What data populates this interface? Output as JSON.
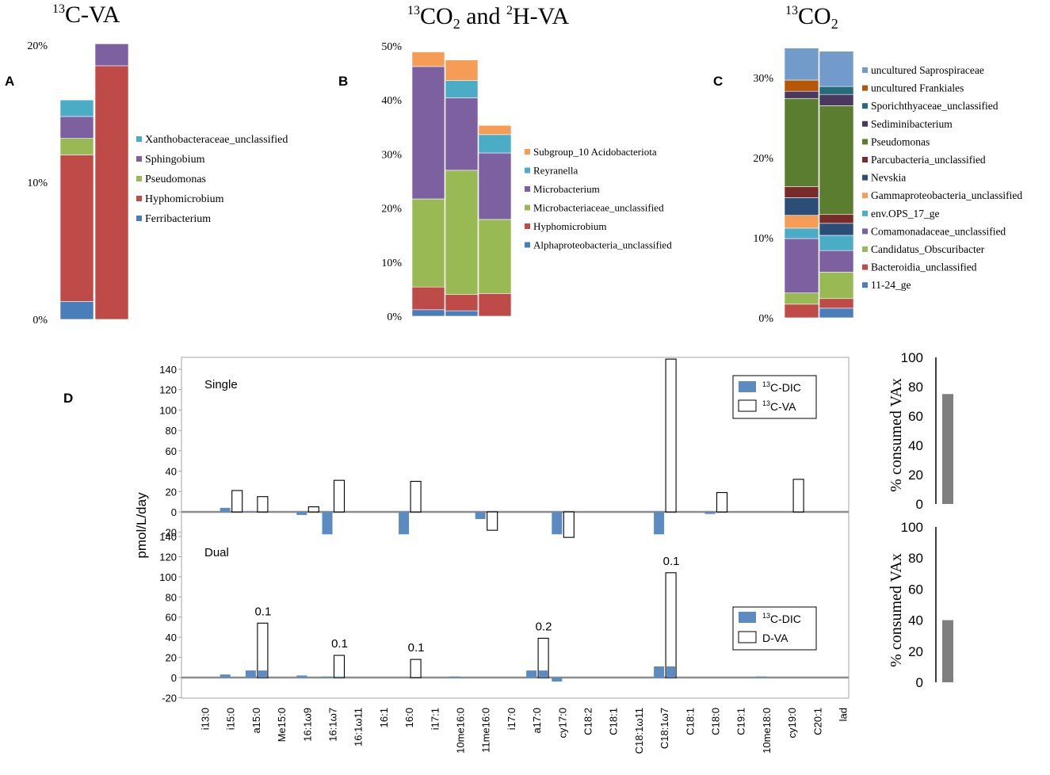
{
  "panels_top": {
    "A": {
      "letter": "A",
      "title_sup": "13",
      "title_main": "C-VA",
      "yticks": [
        "0%",
        "10%",
        "20%"
      ],
      "ymax": 20,
      "legend": [
        "Xanthobacteraceae_unclassified",
        "Sphingobium",
        "Pseudomonas",
        "Hyphomicrobium",
        "Ferribacterium"
      ]
    },
    "B": {
      "letter": "B",
      "yticks": [
        "0%",
        "10%",
        "20%",
        "30%",
        "40%",
        "50%"
      ],
      "ymax": 50,
      "legend": [
        "Subgroup_10 Acidobacteriota",
        "Reyranella",
        "Microbacterium",
        "Microbacteriaceae_unclassified",
        "Hyphomicrobium",
        "Alphaproteobacteria_unclassified"
      ]
    },
    "C": {
      "letter": "C",
      "title_sup": "13",
      "title_main": "CO",
      "yticks": [
        "0%",
        "10%",
        "20%",
        "30%"
      ],
      "ymax": 33,
      "legend": [
        "uncultured Saprospiraceae",
        "uncultured Frankiales",
        "Sporichthyaceae_unclassified",
        "Sediminibacterium",
        "Pseudomonas",
        "Parcubacteria_unclassified",
        "Nevskia",
        "Gammaproteobacteria_unclassified",
        "env.OPS_17_ge",
        "Comamonadaceae_unclassified",
        "Candidatus_Obscuribacter",
        "Bacteroidia_unclassified",
        "11-24_ge"
      ]
    }
  },
  "title_B": {
    "sup1": "13",
    "part1": "CO",
    "sub1": "2",
    "part2": " and ",
    "sup2": "2",
    "part3": "H-VA"
  },
  "title_C_sub": "2",
  "colors": {
    "blue": "#4a7ebb",
    "red": "#be4b48",
    "green": "#98b954",
    "purple": "#7d60a0",
    "teal": "#4bacc6",
    "orange": "#f59d56",
    "darkgreen": "#5b7d2f",
    "darkred": "#772c2a",
    "navy": "#2c4d75",
    "darkpurple": "#4b3861",
    "darkteal": "#276a7c",
    "darkorange": "#b65708",
    "lightblue": "#729aca",
    "bar_fill": "#5b8bc0",
    "grey_bar": "#7f7f7f"
  },
  "chart_data": [
    {
      "type": "stacked-bar",
      "id": "A",
      "series": [
        {
          "name": "Ferribacterium",
          "values": [
            1.3,
            0
          ]
        },
        {
          "name": "Hyphomicrobium",
          "values": [
            10.7,
            18.5
          ]
        },
        {
          "name": "Pseudomonas",
          "values": [
            1.2,
            0
          ]
        },
        {
          "name": "Sphingobium",
          "values": [
            1.6,
            1.6
          ]
        },
        {
          "name": "Xanthobacteraceae_unclassified",
          "values": [
            1.2,
            0
          ]
        }
      ]
    },
    {
      "type": "stacked-bar",
      "id": "B",
      "series": [
        {
          "name": "Alphaproteobacteria_unclassified",
          "values": [
            1.2,
            1.0,
            0
          ]
        },
        {
          "name": "Hyphomicrobium",
          "values": [
            4.2,
            3.0,
            4.2
          ]
        },
        {
          "name": "Microbacteriaceae_unclassified",
          "values": [
            16.3,
            23.0,
            13.7
          ]
        },
        {
          "name": "Microbacterium",
          "values": [
            24.5,
            13.4,
            12.3
          ]
        },
        {
          "name": "Reyranella",
          "values": [
            0,
            3.2,
            3.4
          ]
        },
        {
          "name": "Subgroup_10 Acidobacteriota",
          "values": [
            2.7,
            3.8,
            1.7
          ]
        }
      ]
    },
    {
      "type": "stacked-bar",
      "id": "C",
      "series": [
        {
          "name": "11-24_ge",
          "values": [
            0,
            1.2
          ]
        },
        {
          "name": "Bacteroidia_unclassified",
          "values": [
            1.7,
            1.2
          ]
        },
        {
          "name": "Candidatus_Obscuribacter",
          "values": [
            1.4,
            3.3
          ]
        },
        {
          "name": "Comamonadaceae_unclassified",
          "values": [
            6.8,
            2.7
          ]
        },
        {
          "name": "env.OPS_17_ge",
          "values": [
            1.3,
            1.9
          ]
        },
        {
          "name": "Gammaproteobacteria_unclassified",
          "values": [
            1.6,
            0
          ]
        },
        {
          "name": "Nevskia",
          "values": [
            2.2,
            1.5
          ]
        },
        {
          "name": "Parcubacteria_unclassified",
          "values": [
            1.4,
            1.1
          ]
        },
        {
          "name": "Pseudomonas",
          "values": [
            11.0,
            13.6
          ]
        },
        {
          "name": "Sediminibacterium",
          "values": [
            0.9,
            1.4
          ]
        },
        {
          "name": "Sporichthyaceae_unclassified",
          "values": [
            0,
            1.0
          ]
        },
        {
          "name": "uncultured Frankiales",
          "values": [
            1.4,
            0
          ]
        },
        {
          "name": "uncultured Saprospiraceae",
          "values": [
            4.0,
            4.4
          ]
        }
      ]
    },
    {
      "type": "bar",
      "id": "D",
      "letter": "D",
      "ylabel": "pmol/L/day",
      "categories": [
        "i13:0",
        "i15:0",
        "a15:0",
        "Me15:0",
        "16:1ω9",
        "16:1ω7",
        "16:1ω11",
        "16:1",
        "16:0",
        "i17:1",
        "10me16:0",
        "11me16:0",
        "i17:0",
        "a17:0",
        "cy17:0",
        "C18:2",
        "C18:1",
        "C18:1ω11",
        "C18:1ω7",
        "C18:1",
        "C18:0",
        "C19:1",
        "10me18:0",
        "cy19:0",
        "C20:1",
        "lad"
      ],
      "single": {
        "label": "Single",
        "yticks": [
          "-20",
          "0",
          "20",
          "40",
          "60",
          "80",
          "100",
          "120",
          "140"
        ],
        "ylim": [
          -25,
          150
        ],
        "legend": [
          {
            "sup": "13",
            "text": "C-DIC"
          },
          {
            "sup": "13",
            "text": "C-VA"
          }
        ],
        "dic": [
          0,
          4,
          0.5,
          0,
          -3,
          -22,
          0,
          0,
          -22,
          0,
          0,
          -7,
          0,
          0,
          -22,
          0,
          0,
          0,
          -22,
          0,
          -2,
          0,
          0,
          0,
          0,
          0
        ],
        "va": [
          0,
          21,
          15,
          0,
          5,
          31,
          0,
          0,
          30,
          0,
          0,
          -18,
          0,
          0,
          -25,
          0,
          0,
          0,
          150,
          0,
          19,
          0,
          0,
          32,
          0,
          0
        ]
      },
      "dual": {
        "label": "Dual",
        "yticks": [
          "-20",
          "0",
          "20",
          "40",
          "60",
          "80",
          "100",
          "120",
          "140"
        ],
        "ylim": [
          -25,
          150
        ],
        "legend": [
          {
            "sup": "13",
            "text": "C-DIC"
          },
          {
            "sup": "",
            "text": "D-VA"
          }
        ],
        "dic": [
          0,
          3,
          7,
          0,
          2,
          1,
          0,
          0,
          0,
          0,
          1,
          0,
          0,
          7,
          -4,
          0,
          0,
          0,
          11,
          0,
          0,
          0,
          1,
          0,
          0,
          0
        ],
        "va": [
          0,
          0,
          54,
          0,
          0,
          22,
          0,
          0,
          18,
          0,
          0,
          0,
          0,
          39,
          0,
          0,
          0,
          0,
          104,
          0,
          0,
          0,
          0,
          0,
          0,
          0
        ],
        "annotations": [
          {
            "category": "a15:0",
            "text": "0.1"
          },
          {
            "category": "16:1ω7",
            "text": "0.1"
          },
          {
            "category": "16:0",
            "text": "0.1"
          },
          {
            "category": "a17:0",
            "text": "0.2"
          },
          {
            "category": "C18:1ω7",
            "text": "0.1"
          }
        ]
      },
      "consumed": {
        "ylabel": "% consumed VAx",
        "yticks": [
          "0",
          "20",
          "40",
          "60",
          "80",
          "100"
        ],
        "single_value": 75,
        "dual_value": 40
      }
    }
  ]
}
